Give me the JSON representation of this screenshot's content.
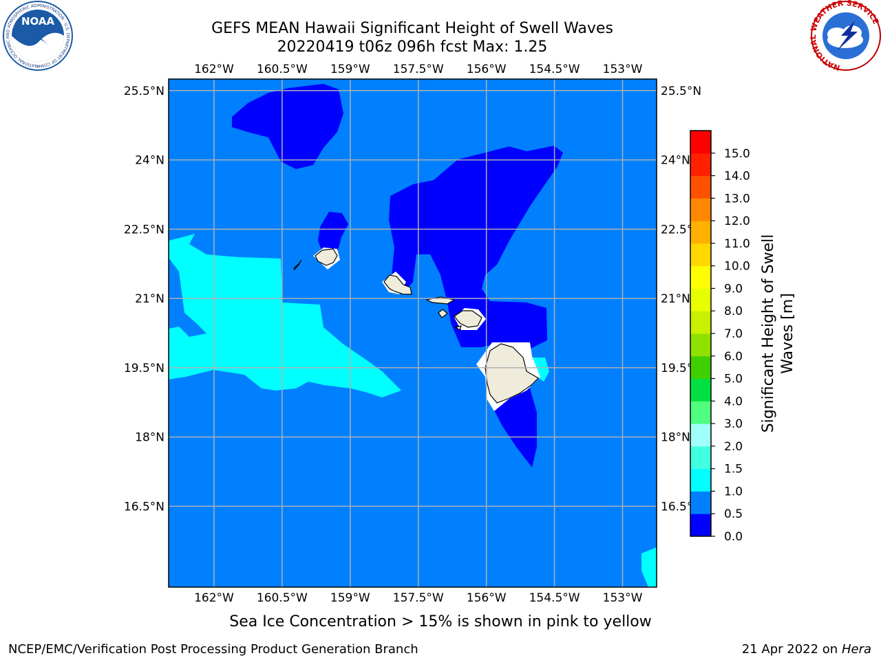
{
  "title_line1": "GEFS MEAN Hawaii Significant Height of Swell Waves",
  "title_line2": "20220419 t06z 096h fcst   Max: 1.25",
  "map": {
    "lon_range": [
      -163.0,
      -152.25
    ],
    "lat_range": [
      14.75,
      25.75
    ],
    "lon_ticks": [
      {
        "value": -162.0,
        "label": "162°W"
      },
      {
        "value": -160.5,
        "label": "160.5°W"
      },
      {
        "value": -159.0,
        "label": "159°W"
      },
      {
        "value": -157.5,
        "label": "157.5°W"
      },
      {
        "value": -156.0,
        "label": "156°W"
      },
      {
        "value": -154.5,
        "label": "154.5°W"
      },
      {
        "value": -153.0,
        "label": "153°W"
      }
    ],
    "lat_ticks": [
      {
        "value": 25.5,
        "label": "25.5°N"
      },
      {
        "value": 24.0,
        "label": "24°N"
      },
      {
        "value": 22.5,
        "label": "22.5°N"
      },
      {
        "value": 21.0,
        "label": "21°N"
      },
      {
        "value": 19.5,
        "label": "19.5°N"
      },
      {
        "value": 18.0,
        "label": "18°N"
      },
      {
        "value": 16.5,
        "label": "16.5°N"
      }
    ],
    "background_color": "#0080ff",
    "low_color": "#0000ff",
    "mid_color": "#00ffff",
    "land_color": "#efecdc",
    "grid_color": "#b0b0b0"
  },
  "colorbar": {
    "label_line1": "Significant Height of Swell",
    "label_line2": "Waves [m]",
    "levels": [
      "0.0",
      "0.5",
      "1.0",
      "1.5",
      "2.0",
      "3.0",
      "4.0",
      "5.0",
      "6.0",
      "7.0",
      "8.0",
      "9.0",
      "10.0",
      "11.0",
      "12.0",
      "13.0",
      "14.0",
      "15.0"
    ],
    "colors": [
      "#0000ff",
      "#0080ff",
      "#00ffff",
      "#40ffe0",
      "#a0fff8",
      "#50ff80",
      "#00e040",
      "#40d000",
      "#90e000",
      "#c8f000",
      "#e8ff00",
      "#ffff00",
      "#ffd800",
      "#ffb000",
      "#ff8800",
      "#ff5000",
      "#ff2000",
      "#ff0000"
    ]
  },
  "logos": {
    "noaa_text": "NOAA",
    "noaa_ring_text": "NATIONAL OCEANIC AND ATMOSPHERIC ADMINISTRATION · U.S. DEPARTMENT OF COMMERCE ·",
    "nws_ring_text": "NATIONAL WEATHER SERVICE"
  },
  "note": "Sea Ice Concentration > 15% is shown in pink to yellow",
  "footer_left": "NCEP/EMC/Verification Post Processing Product Generation Branch",
  "footer_right_prefix": "21 Apr 2022 on ",
  "footer_right_host": "Hera"
}
